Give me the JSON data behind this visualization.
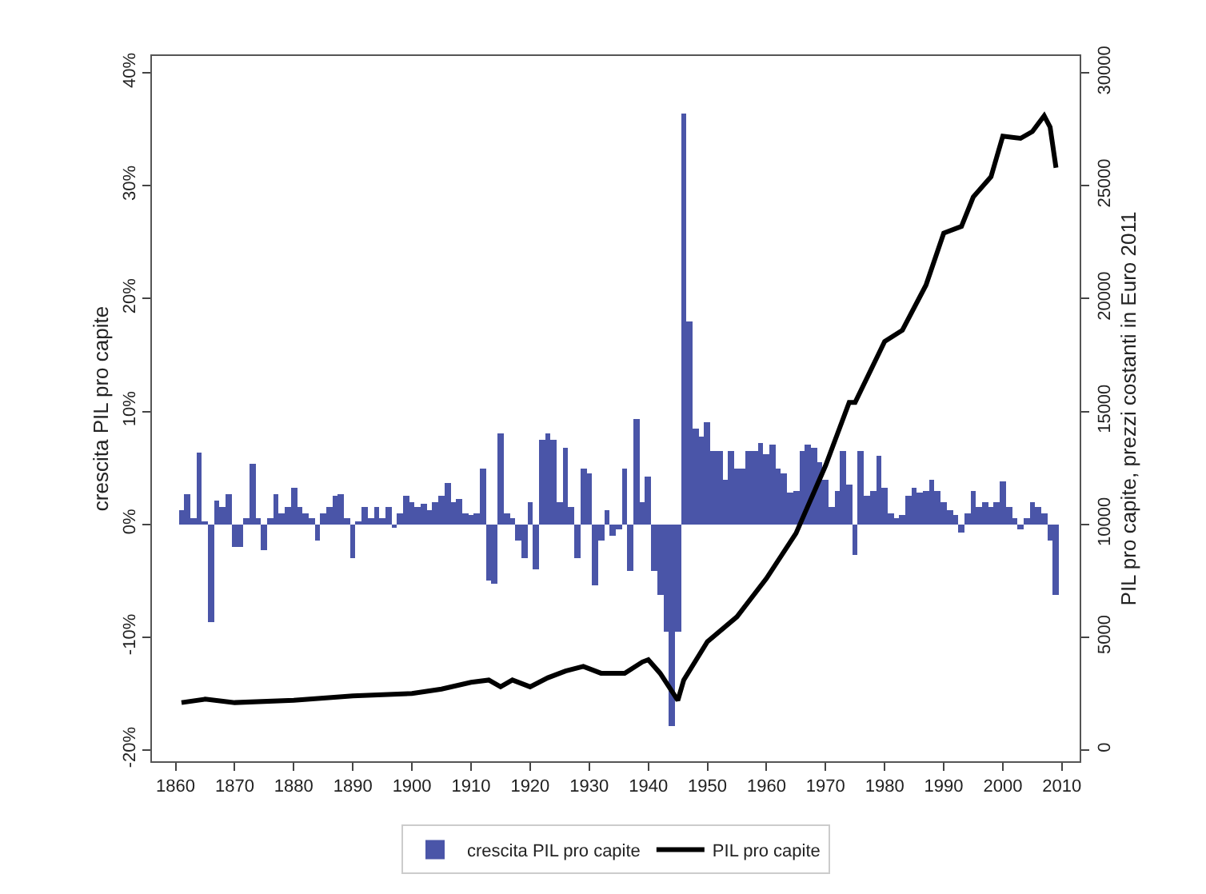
{
  "chart_data": {
    "type": "bar",
    "xlabel": null,
    "ylabel": "crescita PIL pro capite",
    "y2label": "PIL pro capite, prezzi costanti in Euro 2011",
    "xlim": [
      1856,
      2013
    ],
    "xticks": [
      1860,
      1870,
      1880,
      1890,
      1900,
      1910,
      1920,
      1930,
      1940,
      1950,
      1960,
      1970,
      1980,
      1990,
      2000,
      2010
    ],
    "ylim": [
      -21,
      41.5
    ],
    "yticks": [
      {
        "value": -20,
        "label": "-20%"
      },
      {
        "value": -10,
        "label": "-10%"
      },
      {
        "value": 0,
        "label": "0%"
      },
      {
        "value": 10,
        "label": "10%"
      },
      {
        "value": 20,
        "label": "20%"
      },
      {
        "value": 30,
        "label": "30%"
      },
      {
        "value": 40,
        "label": "40%"
      }
    ],
    "y2lim": [
      -500,
      30750
    ],
    "y2ticks": [
      0,
      5000,
      10000,
      15000,
      20000,
      25000,
      30000
    ],
    "legend": "bottom",
    "series": [
      {
        "name": "crescita PIL pro capite",
        "color": "#4a55a8",
        "x": [
          1861,
          1862,
          1863,
          1864,
          1865,
          1866,
          1867,
          1868,
          1869,
          1870,
          1871,
          1872,
          1873,
          1874,
          1875,
          1876,
          1877,
          1878,
          1879,
          1880,
          1881,
          1882,
          1883,
          1884,
          1885,
          1886,
          1887,
          1888,
          1889,
          1890,
          1891,
          1892,
          1893,
          1894,
          1895,
          1896,
          1897,
          1898,
          1899,
          1900,
          1901,
          1902,
          1903,
          1904,
          1905,
          1906,
          1907,
          1908,
          1909,
          1910,
          1911,
          1912,
          1913,
          1914,
          1915,
          1916,
          1917,
          1918,
          1919,
          1920,
          1921,
          1922,
          1923,
          1924,
          1925,
          1926,
          1927,
          1928,
          1929,
          1930,
          1931,
          1932,
          1933,
          1934,
          1935,
          1936,
          1937,
          1938,
          1939,
          1940,
          1941,
          1942,
          1943,
          1944,
          1945,
          1946,
          1947,
          1948,
          1949,
          1950,
          1951,
          1952,
          1953,
          1954,
          1955,
          1956,
          1957,
          1958,
          1959,
          1960,
          1961,
          1962,
          1963,
          1964,
          1965,
          1966,
          1967,
          1968,
          1969,
          1970,
          1971,
          1972,
          1973,
          1974,
          1975,
          1976,
          1977,
          1978,
          1979,
          1980,
          1981,
          1982,
          1983,
          1984,
          1985,
          1986,
          1987,
          1988,
          1989,
          1990,
          1991,
          1992,
          1993,
          1994,
          1995,
          1996,
          1997,
          1998,
          1999,
          2000,
          2001,
          2002,
          2003,
          2004,
          2005,
          2006,
          2007,
          2008,
          2009
        ],
        "values": [
          1.2,
          2.6,
          0.5,
          6.4,
          0.3,
          -8.6,
          2.1,
          1.5,
          2.6,
          -2.0,
          -2.0,
          0.5,
          5.3,
          0.5,
          -2.3,
          0.5,
          2.6,
          1.0,
          1.5,
          3.3,
          1.5,
          1.0,
          0.5,
          -1.5,
          1.0,
          1.5,
          2.5,
          2.7,
          0.5,
          -3.0,
          0.3,
          1.5,
          0.5,
          1.5,
          0.5,
          1.5,
          -0.3,
          1.0,
          2.5,
          2.0,
          1.5,
          1.8,
          1.2,
          2.0,
          2.5,
          3.6,
          2.0,
          2.2,
          1.0,
          0.8,
          1.0,
          5.0,
          -5.0,
          -5.3,
          8.1,
          1.0,
          0.5,
          -1.5,
          -3.0,
          2.0,
          -4.0,
          7.5,
          8.0,
          7.5,
          2.0,
          6.8,
          1.5,
          -3.0,
          5.0,
          4.5,
          -5.4,
          -1.5,
          1.2,
          -1.0,
          -0.5,
          5.0,
          -4.2,
          9.3,
          2.0,
          4.2,
          -4.2,
          -6.3,
          -9.5,
          -17.9,
          -9.5,
          36.4,
          18.0,
          8.5,
          7.7,
          9.0,
          6.5,
          6.5,
          4.0,
          6.5,
          5.0,
          5.0,
          6.5,
          6.5,
          7.2,
          6.2,
          7.0,
          5.0,
          4.5,
          2.8,
          3.0,
          6.5,
          7.0,
          6.8,
          5.5,
          4.0,
          1.5,
          3.0,
          6.5,
          3.5,
          -2.7,
          6.5,
          2.5,
          3.0,
          6.0,
          3.3,
          1.0,
          0.5,
          0.8,
          2.5,
          3.2,
          2.8,
          3.0,
          4.0,
          3.0,
          2.0,
          1.2,
          0.8,
          -0.8,
          1.0,
          3.0,
          1.5,
          2.0,
          1.5,
          2.0,
          3.8,
          1.5,
          0.5,
          -0.5,
          0.5,
          2.0,
          1.5,
          1.0,
          -1.5,
          -6.3
        ]
      },
      {
        "name": "PIL pro capite",
        "type": "line",
        "axis": "y2",
        "color": "#000000",
        "x": [
          1861,
          1865,
          1870,
          1880,
          1890,
          1900,
          1905,
          1910,
          1913,
          1915,
          1917,
          1920,
          1923,
          1926,
          1929,
          1932,
          1936,
          1939,
          1940,
          1942,
          1943,
          1945,
          1946,
          1950,
          1955,
          1960,
          1965,
          1970,
          1972,
          1974,
          1975,
          1980,
          1983,
          1987,
          1990,
          1993,
          1995,
          1998,
          2000,
          2003,
          2005,
          2007,
          2008,
          2009
        ],
        "values": [
          2100,
          2250,
          2100,
          2200,
          2400,
          2500,
          2700,
          3000,
          3100,
          2800,
          3100,
          2800,
          3200,
          3500,
          3700,
          3400,
          3400,
          3900,
          4000,
          3400,
          3000,
          2200,
          3100,
          4800,
          5900,
          7600,
          9600,
          12600,
          14000,
          15400,
          15400,
          18100,
          18600,
          20600,
          22900,
          23200,
          24500,
          25400,
          27200,
          27100,
          27400,
          28100,
          27600,
          25800
        ]
      }
    ]
  }
}
